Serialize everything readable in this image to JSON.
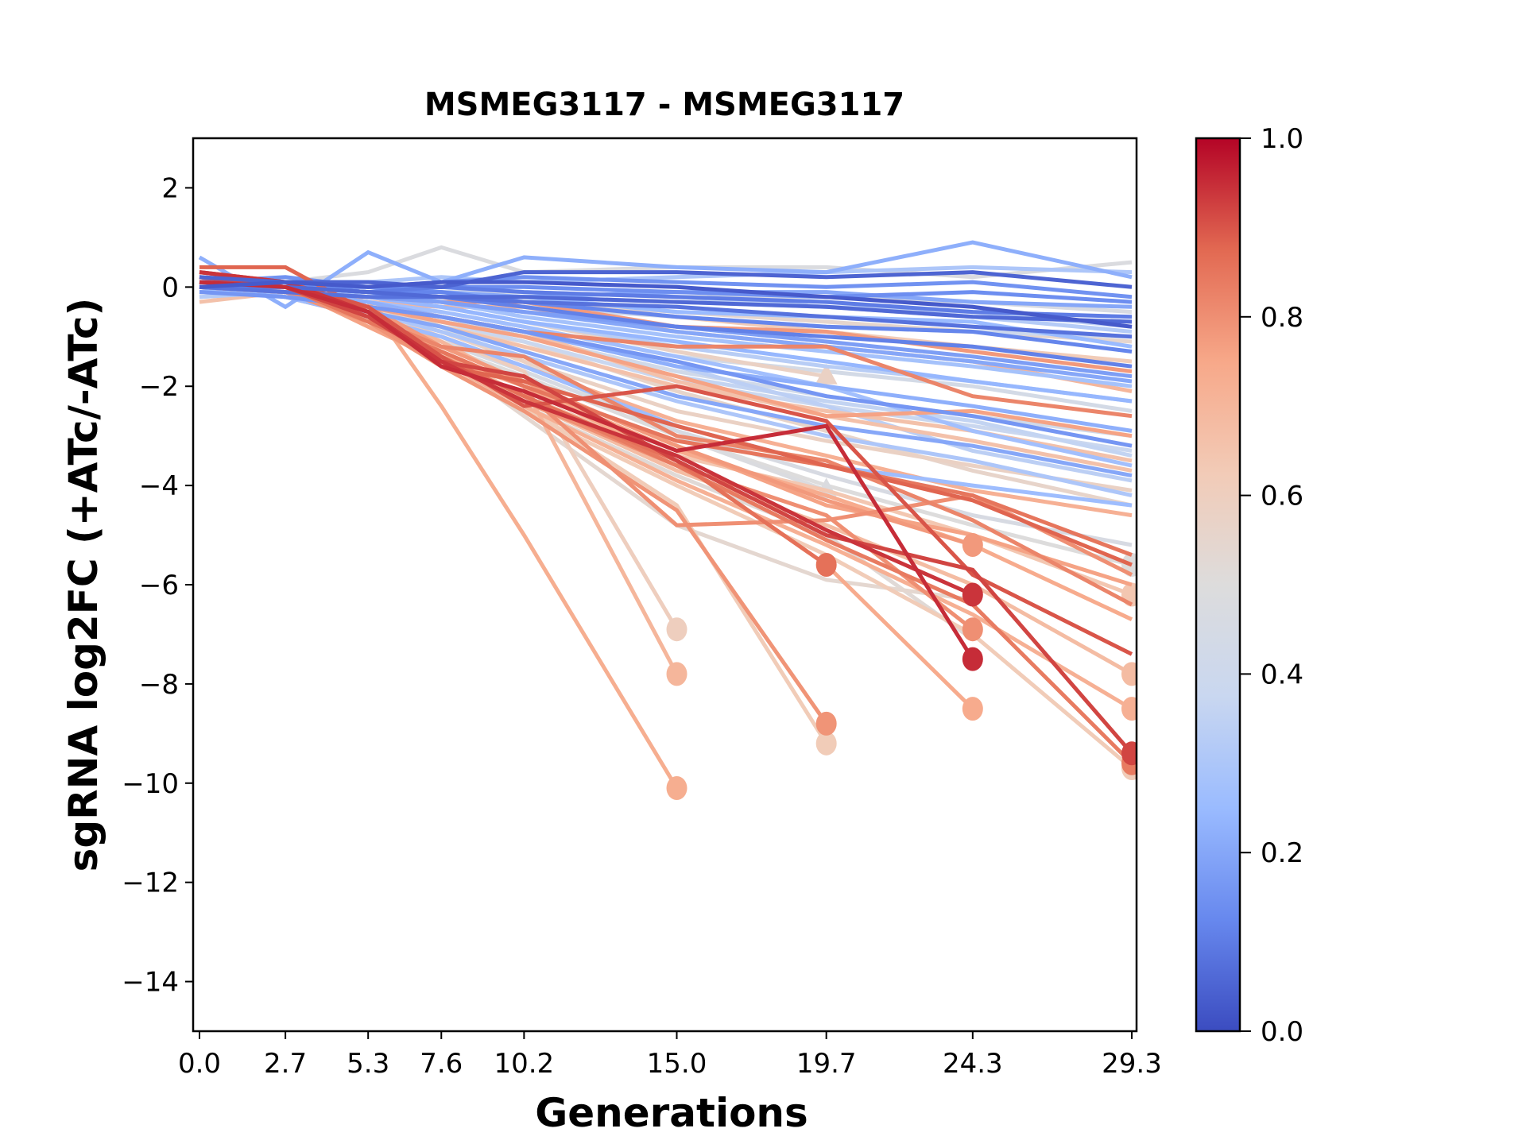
{
  "chart_data": {
    "type": "line",
    "title": "MSMEG3117 - MSMEG3117",
    "xlabel": "Generations",
    "ylabel": "sgRNA log2FC (+ATc/-ATc)",
    "x": [
      0.0,
      2.7,
      5.3,
      7.6,
      10.2,
      15.0,
      19.7,
      24.3,
      29.3
    ],
    "x_tick_labels": [
      "0.0",
      "2.7",
      "5.3",
      "7.6",
      "10.2",
      "15.0",
      "19.7",
      "24.3",
      "29.3"
    ],
    "xlim": [
      -0.2,
      29.45
    ],
    "ylim": [
      -15,
      3
    ],
    "y_ticks": [
      2,
      0,
      -2,
      -4,
      -6,
      -8,
      -10,
      -12,
      -14
    ],
    "y_tick_labels": [
      "2",
      "0",
      "−2",
      "−4",
      "−6",
      "−8",
      "−10",
      "−12",
      "−14"
    ],
    "grid": false,
    "colormap": "coolwarm",
    "colorbar": {
      "range": [
        0.0,
        1.0
      ],
      "ticks": [
        0.0,
        0.2,
        0.4,
        0.6,
        0.8,
        1.0
      ],
      "tick_labels": [
        "0.0",
        "0.2",
        "0.4",
        "0.6",
        "0.8",
        "1.0"
      ],
      "position": "right",
      "stops": [
        "#3b4cc0",
        "#6788ee",
        "#9abbff",
        "#c9d7f0",
        "#dddcdc",
        "#f2cbb7",
        "#f7a889",
        "#e26952",
        "#b40426"
      ]
    },
    "series": [
      {
        "c": 0.22,
        "y": [
          0.6,
          -0.4,
          0.7,
          0.1,
          0.6,
          0.4,
          0.3,
          0.9,
          0.2
        ]
      },
      {
        "c": 0.48,
        "y": [
          0.3,
          0.1,
          0.3,
          0.8,
          0.3,
          0.4,
          0.4,
          0.2,
          0.5
        ]
      },
      {
        "c": 0.05,
        "y": [
          0.2,
          0.1,
          0.1,
          0.0,
          0.3,
          0.3,
          0.2,
          0.3,
          0.0
        ]
      },
      {
        "c": 0.15,
        "y": [
          0.1,
          0.2,
          0.0,
          0.1,
          0.2,
          0.1,
          0.0,
          0.1,
          -0.2
        ]
      },
      {
        "c": 0.3,
        "y": [
          0.2,
          0.1,
          0.1,
          0.2,
          0.1,
          0.2,
          0.3,
          0.4,
          0.3
        ]
      },
      {
        "c": 0.1,
        "y": [
          0.0,
          0.0,
          -0.1,
          0.0,
          -0.1,
          -0.2,
          -0.3,
          -0.5,
          -0.6
        ]
      },
      {
        "c": 0.2,
        "y": [
          0.1,
          0.0,
          0.0,
          -0.1,
          -0.2,
          -0.1,
          -0.1,
          -0.3,
          -0.4
        ]
      },
      {
        "c": 0.35,
        "y": [
          0.0,
          0.1,
          0.0,
          0.0,
          -0.1,
          -0.2,
          -0.4,
          -0.5,
          -0.8
        ]
      },
      {
        "c": 0.08,
        "y": [
          0.0,
          -0.1,
          -0.2,
          -0.2,
          -0.3,
          -0.4,
          -0.6,
          -0.8,
          -1.0
        ]
      },
      {
        "c": 0.25,
        "y": [
          -0.1,
          0.0,
          -0.1,
          -0.2,
          -0.2,
          -0.5,
          -0.6,
          -0.7,
          -1.2
        ]
      },
      {
        "c": 0.12,
        "y": [
          0.1,
          0.0,
          -0.1,
          -0.1,
          -0.3,
          -0.6,
          -0.8,
          -0.9,
          -1.3
        ]
      },
      {
        "c": 0.4,
        "y": [
          0.0,
          0.0,
          -0.2,
          -0.2,
          -0.4,
          -0.6,
          -0.8,
          -0.9,
          -1.0
        ]
      },
      {
        "c": 0.55,
        "y": [
          0.1,
          0.0,
          -0.1,
          -0.2,
          -0.3,
          -0.5,
          -0.7,
          -0.9,
          -1.1
        ]
      },
      {
        "c": 0.62,
        "y": [
          0.0,
          -0.1,
          -0.1,
          -0.2,
          -0.3,
          -0.6,
          -0.9,
          -1.2,
          -1.5
        ]
      },
      {
        "c": 0.18,
        "y": [
          0.0,
          -0.1,
          -0.2,
          -0.3,
          -0.5,
          -0.8,
          -1.1,
          -1.4,
          -1.8
        ]
      },
      {
        "c": 0.28,
        "y": [
          0.0,
          0.0,
          -0.2,
          -0.3,
          -0.6,
          -1.0,
          -1.3,
          -1.6,
          -2.0
        ]
      },
      {
        "c": 0.7,
        "y": [
          0.1,
          0.0,
          -0.3,
          -0.4,
          -0.4,
          -0.9,
          -1.2,
          -1.5,
          -2.1
        ]
      },
      {
        "c": 0.78,
        "y": [
          0.0,
          -0.1,
          -0.2,
          -0.3,
          -0.3,
          -0.8,
          -0.9,
          -1.3,
          -1.7
        ]
      },
      {
        "c": 0.33,
        "y": [
          0.0,
          -0.1,
          -0.3,
          -0.4,
          -0.7,
          -1.2,
          -1.6,
          -1.9,
          -2.3
        ]
      },
      {
        "c": 0.44,
        "y": [
          0.1,
          0.0,
          -0.3,
          -0.5,
          -0.8,
          -1.4,
          -1.7,
          -2.0,
          -2.5
        ]
      },
      {
        "c": 0.82,
        "y": [
          0.0,
          -0.1,
          -0.4,
          -0.6,
          -0.9,
          -1.2,
          -1.2,
          -2.2,
          -2.6
        ]
      },
      {
        "c": 0.22,
        "y": [
          0.0,
          -0.1,
          -0.3,
          -0.6,
          -0.9,
          -1.6,
          -2.0,
          -2.4,
          -2.9
        ]
      },
      {
        "c": 0.76,
        "y": [
          0.0,
          -0.1,
          -0.4,
          -0.7,
          -1.0,
          -1.8,
          -2.6,
          -2.5,
          -3.0
        ]
      },
      {
        "c": 0.38,
        "y": [
          -0.1,
          -0.1,
          -0.4,
          -0.7,
          -1.1,
          -1.9,
          -2.4,
          -2.8,
          -3.3
        ]
      },
      {
        "c": 0.66,
        "y": [
          0.0,
          -0.1,
          -0.5,
          -0.8,
          -1.2,
          -2.0,
          -2.5,
          -2.9,
          -3.5
        ]
      },
      {
        "c": 0.2,
        "y": [
          0.0,
          -0.1,
          -0.5,
          -0.8,
          -1.3,
          -2.2,
          -2.8,
          -3.2,
          -3.8
        ]
      },
      {
        "c": 0.3,
        "y": [
          0.0,
          -0.2,
          -0.5,
          -0.9,
          -1.4,
          -2.3,
          -3.0,
          -3.5,
          -4.2
        ]
      },
      {
        "c": 0.58,
        "y": [
          0.1,
          -0.1,
          -0.5,
          -0.9,
          -1.5,
          -2.5,
          -3.1,
          -3.6,
          -4.1
        ]
      },
      {
        "c": 0.72,
        "y": [
          0.0,
          -0.2,
          -0.6,
          -1.0,
          -1.6,
          -2.7,
          -3.4,
          -4.1,
          -4.6
        ]
      },
      {
        "c": 0.26,
        "y": [
          0.0,
          -0.2,
          -0.6,
          -1.0,
          -1.6,
          -2.8,
          -3.6,
          -4.0,
          -4.4
        ]
      },
      {
        "c": 0.46,
        "y": [
          0.0,
          -0.2,
          -0.6,
          -1.1,
          -1.7,
          -2.9,
          -3.8,
          -4.6,
          -5.2
        ]
      },
      {
        "c": 0.5,
        "y": [
          0.0,
          -0.2,
          -0.6,
          -1.2,
          -1.8,
          -3.0,
          -4.0,
          -4.8,
          -5.6
        ],
        "marker": "circle"
      },
      {
        "c": 0.85,
        "y": [
          0.2,
          0.0,
          -0.7,
          -1.3,
          -2.0,
          -3.1,
          -3.6,
          -4.2,
          -5.4
        ]
      },
      {
        "c": 0.9,
        "y": [
          0.3,
          0.1,
          -0.4,
          -1.4,
          -2.4,
          -2.0,
          -2.7,
          -5.8,
          -7.4
        ]
      },
      {
        "c": 0.8,
        "y": [
          0.2,
          0.0,
          -0.6,
          -1.6,
          -2.1,
          -4.8,
          -4.7,
          -4.2,
          -5.8
        ]
      },
      {
        "c": 0.64,
        "y": [
          0.1,
          -0.1,
          -0.7,
          -1.3,
          -2.2,
          -3.4,
          -4.1,
          -5.0,
          -6.2
        ],
        "marker": "circle"
      },
      {
        "c": 0.74,
        "y": [
          0.0,
          -0.1,
          -0.6,
          -1.4,
          -2.0,
          -3.3,
          -4.2,
          -5.2,
          -6.7
        ]
      },
      {
        "c": 0.92,
        "y": [
          0.2,
          0.0,
          -0.6,
          -1.5,
          -1.8,
          -3.5,
          -5.0,
          -5.7,
          -9.4
        ],
        "marker": "circle"
      },
      {
        "c": 0.68,
        "y": [
          0.0,
          0.0,
          -0.5,
          -1.4,
          -2.3,
          -3.7,
          -4.8,
          -6.0,
          -7.8
        ],
        "marker": "circle"
      },
      {
        "c": 0.72,
        "y": [
          0.0,
          -0.1,
          -0.6,
          -1.5,
          -2.4,
          -3.9,
          -5.2,
          -6.6,
          -8.5
        ],
        "marker": "circle"
      },
      {
        "c": 0.62,
        "y": [
          -0.1,
          -0.1,
          -0.5,
          -1.6,
          -2.5,
          -4.0,
          -5.4,
          -7.0,
          -9.7
        ],
        "marker": "circle"
      },
      {
        "c": 0.84,
        "y": [
          0.1,
          0.0,
          -0.5,
          -1.4,
          -2.2,
          -3.6,
          -5.1,
          -6.4,
          -9.6
        ],
        "marker": "circle"
      },
      {
        "c": 0.94,
        "y": [
          0.3,
          0.1,
          -0.5,
          -1.5,
          -2.3,
          -3.4,
          -4.9,
          -6.2,
          null
        ],
        "marker": "circle"
      },
      {
        "c": 0.95,
        "y": [
          0.1,
          0.0,
          -0.5,
          -1.6,
          -2.1,
          -3.3,
          -2.8,
          -7.5,
          null
        ],
        "marker": "circle"
      },
      {
        "c": 0.8,
        "y": [
          0.2,
          0.0,
          -0.6,
          -1.5,
          -2.3,
          -3.6,
          -4.6,
          -6.9,
          null
        ],
        "marker": "circle"
      },
      {
        "c": 0.52,
        "y": [
          0.0,
          -0.1,
          -0.6,
          -1.5,
          -2.4,
          -3.8,
          -5.0,
          -7.1,
          null
        ]
      },
      {
        "c": 0.78,
        "y": [
          0.0,
          -0.1,
          -0.4,
          -1.2,
          -1.9,
          -3.2,
          -4.3,
          -5.2,
          null
        ],
        "marker": "circle"
      },
      {
        "c": 0.74,
        "y": [
          0.0,
          -0.1,
          -0.5,
          -1.3,
          -2.0,
          -3.5,
          -5.6,
          -8.5,
          null
        ],
        "marker": "circle"
      },
      {
        "c": 0.86,
        "y": [
          0.1,
          0.0,
          -0.6,
          -1.4,
          -2.2,
          -3.5,
          -5.6,
          null,
          null
        ],
        "marker": "circle"
      },
      {
        "c": 0.79,
        "y": [
          0.0,
          -0.1,
          -0.7,
          -1.6,
          -2.5,
          -4.5,
          -8.8,
          null,
          null
        ],
        "marker": "circle"
      },
      {
        "c": 0.62,
        "y": [
          0.0,
          -0.1,
          -0.6,
          -1.5,
          -2.4,
          -4.4,
          -9.2,
          null,
          null
        ],
        "marker": "circle"
      },
      {
        "c": 0.54,
        "y": [
          0.0,
          -0.1,
          -0.6,
          -1.4,
          -2.6,
          -4.8,
          -5.9,
          -6.3,
          null
        ]
      },
      {
        "c": 0.6,
        "y": [
          0.0,
          -0.1,
          -0.5,
          -1.0,
          -1.7,
          -6.9,
          null,
          null,
          null
        ],
        "marker": "circle"
      },
      {
        "c": 0.7,
        "y": [
          0.0,
          -0.1,
          -0.5,
          -1.1,
          -2.0,
          -7.8,
          null,
          null,
          null
        ],
        "marker": "circle"
      },
      {
        "c": 0.73,
        "y": [
          0.0,
          -0.1,
          -0.3,
          -2.4,
          -5.0,
          -10.1,
          null,
          null,
          null
        ],
        "marker": "circle"
      },
      {
        "c": 0.48,
        "y": [
          0.0,
          0.0,
          -0.3,
          -0.8,
          -1.5,
          -3.0,
          -4.1,
          null,
          null
        ],
        "marker": "triangle"
      },
      {
        "c": 0.58,
        "y": [
          0.0,
          0.0,
          -0.2,
          -0.4,
          -0.7,
          -1.3,
          -1.8,
          null,
          null
        ],
        "marker": "triangle"
      },
      {
        "c": 0.16,
        "y": [
          -0.1,
          -0.2,
          -0.4,
          -0.6,
          -0.9,
          -1.5,
          -2.2,
          -2.6,
          -3.2
        ]
      },
      {
        "c": 0.36,
        "y": [
          0.0,
          -0.1,
          -0.4,
          -0.7,
          -1.0,
          -1.8,
          -2.3,
          -2.7,
          -3.4
        ]
      },
      {
        "c": 0.42,
        "y": [
          0.0,
          -0.1,
          -0.3,
          -0.6,
          -1.0,
          -1.7,
          -2.2,
          -2.6,
          -3.0
        ]
      },
      {
        "c": 0.24,
        "y": [
          0.0,
          -0.1,
          -0.2,
          -0.4,
          -0.7,
          -1.1,
          -1.5,
          -1.9,
          -2.3
        ]
      },
      {
        "c": 0.06,
        "y": [
          0.1,
          0.0,
          -0.1,
          -0.2,
          -0.2,
          -0.3,
          -0.4,
          -0.6,
          -0.7
        ]
      },
      {
        "c": 0.03,
        "y": [
          0.0,
          0.1,
          0.0,
          0.1,
          0.1,
          0.0,
          -0.2,
          -0.4,
          -0.8
        ]
      },
      {
        "c": 0.14,
        "y": [
          0.0,
          0.0,
          0.0,
          0.0,
          0.0,
          -0.1,
          -0.2,
          -0.1,
          -0.3
        ]
      },
      {
        "c": 0.32,
        "y": [
          -0.2,
          -0.1,
          -0.1,
          -0.1,
          -0.2,
          -0.3,
          -0.4,
          -0.6,
          -0.9
        ]
      },
      {
        "c": 0.46,
        "y": [
          0.0,
          0.0,
          0.0,
          -0.1,
          -0.1,
          -0.2,
          -0.2,
          -0.3,
          -0.5
        ]
      },
      {
        "c": 0.88,
        "y": [
          0.4,
          0.4,
          -0.5,
          -1.6,
          -1.9,
          -2.8,
          -3.6,
          -4.3,
          -5.6
        ]
      },
      {
        "c": 0.66,
        "y": [
          -0.3,
          -0.1,
          -0.3,
          -0.6,
          -0.9,
          -1.9,
          -2.6,
          -3.1,
          -3.7
        ]
      },
      {
        "c": 0.56,
        "y": [
          -0.2,
          -0.1,
          -0.4,
          -0.8,
          -1.1,
          -2.1,
          -2.9,
          -3.7,
          -4.4
        ]
      },
      {
        "c": 0.76,
        "y": [
          0.2,
          0.0,
          -0.8,
          -1.5,
          -1.9,
          -3.2,
          -4.4,
          -5.0,
          -6.0
        ]
      },
      {
        "c": 0.82,
        "y": [
          0.1,
          0.0,
          -0.6,
          -1.2,
          -1.4,
          -3.0,
          -3.5,
          -4.7,
          -6.4
        ]
      },
      {
        "c": 0.11,
        "y": [
          0.0,
          0.0,
          -0.1,
          -0.2,
          -0.4,
          -0.8,
          -1.0,
          -1.2,
          -1.6
        ]
      },
      {
        "c": 0.2,
        "y": [
          0.0,
          0.0,
          -0.1,
          -0.3,
          -0.5,
          -0.9,
          -1.2,
          -1.5,
          -1.9
        ]
      },
      {
        "c": 0.27,
        "y": [
          0.0,
          -0.1,
          -0.3,
          -0.5,
          -0.8,
          -1.4,
          -2.0,
          -2.9,
          -3.6
        ]
      },
      {
        "c": 0.34,
        "y": [
          0.0,
          -0.1,
          -0.3,
          -0.6,
          -0.9,
          -1.6,
          -2.4,
          -3.3,
          -3.9
        ]
      }
    ]
  }
}
